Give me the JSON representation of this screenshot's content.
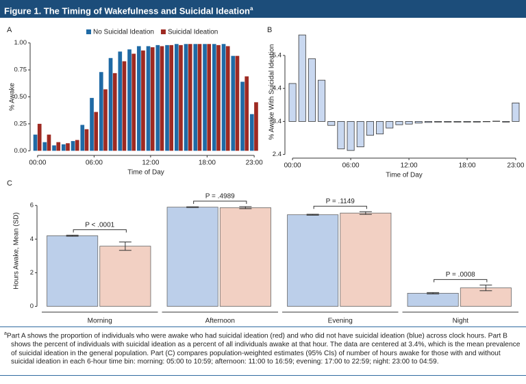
{
  "header": {
    "title": "Figure 1. The Timing of Wakefulness and Suicidal Ideation",
    "title_note": "a"
  },
  "chart_data": [
    {
      "type": "bar",
      "panel": "A",
      "xlabel": "Time of Day",
      "ylabel": "% Awake",
      "legend": "top",
      "categories": [
        "00:00",
        null,
        null,
        null,
        null,
        null,
        "06:00",
        null,
        null,
        null,
        null,
        null,
        "12:00",
        null,
        null,
        null,
        null,
        null,
        "18:00",
        null,
        null,
        null,
        null,
        "23:00"
      ],
      "series": [
        {
          "name": "No Suicidal Ideation",
          "color": "#1f6aa5",
          "values": [
            0.15,
            0.08,
            0.05,
            0.06,
            0.09,
            0.24,
            0.49,
            0.73,
            0.86,
            0.92,
            0.94,
            0.97,
            0.97,
            0.98,
            0.98,
            0.99,
            0.99,
            0.99,
            0.99,
            0.99,
            0.99,
            0.88,
            0.64,
            0.34
          ]
        },
        {
          "name": "Suicidal Ideation",
          "color": "#9e2a22",
          "values": [
            0.25,
            0.15,
            0.08,
            0.07,
            0.1,
            0.2,
            0.36,
            0.57,
            0.72,
            0.83,
            0.9,
            0.93,
            0.96,
            0.97,
            0.98,
            0.98,
            0.99,
            0.99,
            0.99,
            0.98,
            0.97,
            0.88,
            0.69,
            0.45
          ]
        }
      ],
      "ylim": [
        -0.03,
        1.03
      ],
      "yticks": [
        {
          "value": 0,
          "label": "0.00"
        },
        {
          "value": 0.25,
          "label": "0.25"
        },
        {
          "value": 0.5,
          "label": "0.50"
        },
        {
          "value": 0.75,
          "label": "0.75"
        },
        {
          "value": 1,
          "label": "1.00"
        }
      ]
    },
    {
      "type": "bar",
      "panel": "B",
      "xlabel": "Time of Day",
      "ylabel": "% Awake With Suicidal Ideation",
      "baseline": 3.4,
      "categories": [
        "00:00",
        null,
        null,
        null,
        null,
        null,
        "06:00",
        null,
        null,
        null,
        null,
        null,
        "12:00",
        null,
        null,
        null,
        null,
        null,
        "18:00",
        null,
        null,
        null,
        null,
        "23:00"
      ],
      "series": [
        {
          "color": "#c9d8f0",
          "values": [
            4.55,
            6.02,
            5.3,
            4.65,
            3.28,
            2.57,
            2.52,
            2.63,
            2.98,
            3.02,
            3.2,
            3.3,
            3.32,
            3.35,
            3.37,
            3.38,
            3.38,
            3.38,
            3.38,
            3.38,
            3.39,
            3.41,
            3.38,
            3.96
          ]
        }
      ],
      "ylim": [
        2.33,
        6.25
      ],
      "yticks": [
        2.4,
        3.4,
        4.4,
        5.4
      ]
    },
    {
      "type": "bar",
      "panel": "C",
      "ylabel": "Hours Awake, Mean (SD)",
      "split_x_axis": true,
      "categories": [
        "Morning",
        "Afternoon",
        "Evening",
        "Night"
      ],
      "series": [
        {
          "color": "#bccfea",
          "values": [
            4.2,
            5.9,
            5.45,
            0.78
          ],
          "errors": [
            0.03,
            0.02,
            0.03,
            0.04
          ]
        },
        {
          "color": "#f2d0c3",
          "values": [
            3.58,
            5.87,
            5.55,
            1.1
          ],
          "errors": [
            0.25,
            0.06,
            0.08,
            0.17
          ]
        }
      ],
      "annotations": [
        "P < .0001",
        "P = .4989",
        "P = .1149",
        "P = .0008"
      ],
      "ylim": [
        -0.1,
        6.7
      ],
      "yticks": [
        0,
        2,
        4,
        6
      ]
    }
  ],
  "footnote": {
    "marker": "a",
    "text": "Part A shows the proportion of individuals who were awake who had suicidal ideation (red) and who did not have suicidal ideation (blue) across clock hours. Part B shows the percent of individuals with suicidal ideation as a percent of all individuals awake at that hour. The data are centered at 3.4%, which is the mean prevalence of suicidal ideation in the general population. Part (C) compares population-weighted estimates (95% CIs) of  number of hours awake for those with and without suicidal ideation in each 6-hour time bin: morning: 05:00 to 10:59; afternoon: 11:00 to 16:59; evening: 17:00 to 22:59; night: 23:00 to 04:59."
  }
}
